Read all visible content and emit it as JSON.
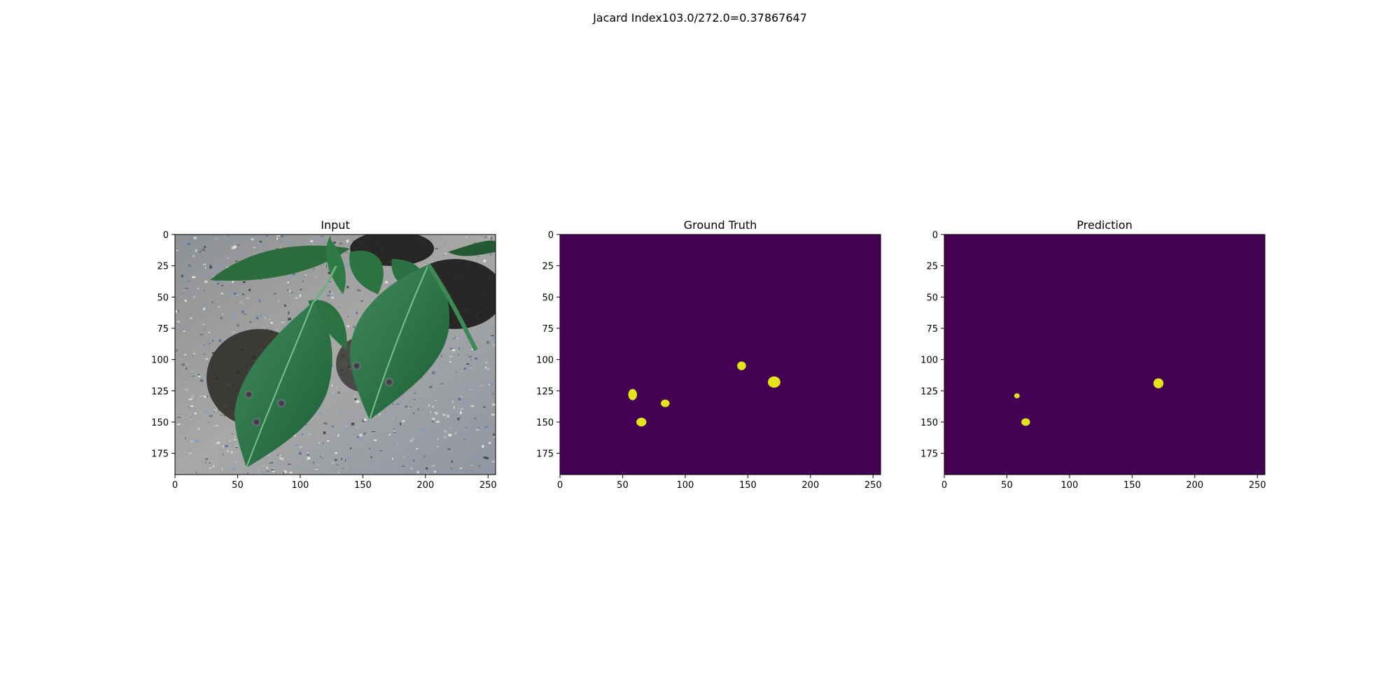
{
  "figure": {
    "suptitle": "Jacard Index103.0/272.0=0.37867647"
  },
  "colors": {
    "mask_background": "#440154",
    "mask_foreground": "#e3e419",
    "axes_frame": "#000000"
  },
  "axes": {
    "xlim": [
      0,
      256
    ],
    "ylim": [
      192,
      0
    ],
    "xticks": [
      0,
      50,
      100,
      150,
      200,
      250
    ],
    "yticks": [
      0,
      25,
      50,
      75,
      100,
      125,
      150,
      175
    ],
    "xtick_labels": [
      "0",
      "50",
      "100",
      "150",
      "200",
      "250"
    ],
    "ytick_labels": [
      "0",
      "25",
      "50",
      "75",
      "100",
      "125",
      "150",
      "175"
    ]
  },
  "panels": [
    {
      "id": "input",
      "title": "Input",
      "kind": "photo",
      "content": "green leaves with dark leaf spots on gravel",
      "leaf_spots": [
        {
          "x": 59,
          "y": 128
        },
        {
          "x": 65,
          "y": 150
        },
        {
          "x": 85,
          "y": 135
        },
        {
          "x": 145,
          "y": 105
        },
        {
          "x": 171,
          "y": 118
        }
      ]
    },
    {
      "id": "ground-truth",
      "title": "Ground Truth",
      "kind": "mask",
      "blobs": [
        {
          "x": 58,
          "y": 128,
          "rx": 3.5,
          "ry": 4.5
        },
        {
          "x": 65,
          "y": 150,
          "rx": 4,
          "ry": 3.5
        },
        {
          "x": 84,
          "y": 135,
          "rx": 3.5,
          "ry": 3
        },
        {
          "x": 145,
          "y": 105,
          "rx": 3.5,
          "ry": 3.5
        },
        {
          "x": 171,
          "y": 118,
          "rx": 5,
          "ry": 4.5
        }
      ]
    },
    {
      "id": "prediction",
      "title": "Prediction",
      "kind": "mask",
      "blobs": [
        {
          "x": 58,
          "y": 129,
          "rx": 2.2,
          "ry": 2
        },
        {
          "x": 65,
          "y": 150,
          "rx": 3.5,
          "ry": 3
        },
        {
          "x": 171,
          "y": 119,
          "rx": 4,
          "ry": 4
        }
      ]
    }
  ]
}
